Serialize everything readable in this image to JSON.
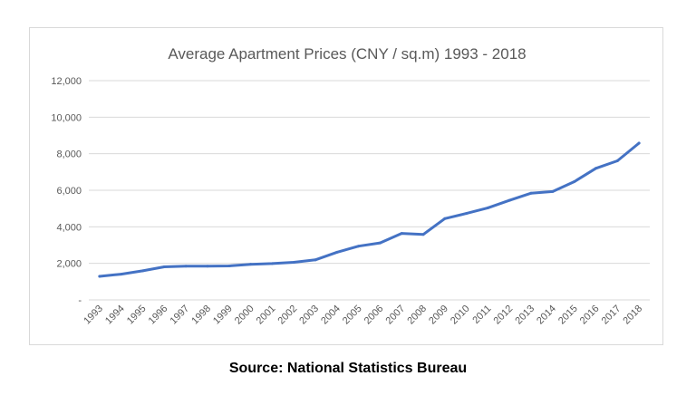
{
  "source_note": "Source: National Statistics Bureau",
  "chart_data": {
    "type": "line",
    "title": "Average Apartment Prices (CNY / sq.m) 1993 - 2018",
    "xlabel": "",
    "ylabel": "",
    "categories": [
      "1993",
      "1994",
      "1995",
      "1996",
      "1997",
      "1998",
      "1999",
      "2000",
      "2001",
      "2002",
      "2003",
      "2004",
      "2005",
      "2006",
      "2007",
      "2008",
      "2009",
      "2010",
      "2011",
      "2012",
      "2013",
      "2014",
      "2015",
      "2016",
      "2017",
      "2018"
    ],
    "series": [
      {
        "values": [
          1290,
          1410,
          1590,
          1810,
          1850,
          1850,
          1860,
          1950,
          1990,
          2060,
          2190,
          2610,
          2940,
          3120,
          3640,
          3580,
          4450,
          4730,
          5040,
          5450,
          5840,
          5930,
          6470,
          7200,
          7610,
          8580
        ],
        "color": "#4472C4"
      }
    ],
    "ylim": [
      0,
      12000
    ],
    "yticks": [
      0,
      2000,
      4000,
      6000,
      8000,
      10000,
      12000
    ],
    "ytick_labels": [
      "-",
      "2,000",
      "4,000",
      "6,000",
      "8,000",
      "10,000",
      "12,000"
    ],
    "grid": true,
    "legend": "none"
  }
}
